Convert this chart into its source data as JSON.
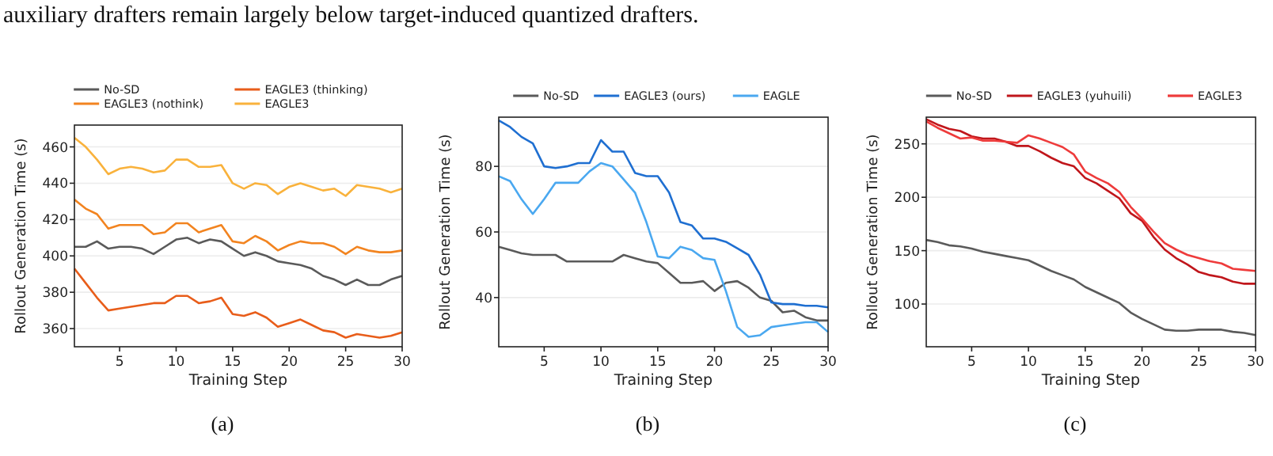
{
  "chart_data": [
    {
      "type": "line",
      "title": "(a)",
      "annotations": [
        "auxiliary drafters remain largely below target-induced quantized drafters."
      ],
      "xlabel": "Training Step",
      "ylabel": "Rollout Generation Time (s)",
      "x": [
        1,
        2,
        3,
        4,
        5,
        6,
        7,
        8,
        9,
        10,
        11,
        12,
        13,
        14,
        15,
        16,
        17,
        18,
        19,
        20,
        21,
        22,
        23,
        24,
        25,
        26,
        27,
        28,
        29,
        30
      ],
      "xlim": [
        1,
        30
      ],
      "xticks": [
        5,
        10,
        15,
        20,
        25,
        30
      ],
      "ylim": [
        350,
        472
      ],
      "yticks": [
        360,
        380,
        400,
        420,
        440,
        460
      ],
      "grid": "y",
      "legend": "top",
      "series": [
        {
          "name": "No-SD",
          "color": "#5a5a5a",
          "values": [
            405,
            405,
            408,
            404,
            405,
            405,
            404,
            401,
            405,
            409,
            410,
            407,
            409,
            408,
            404,
            400,
            402,
            400,
            397,
            396,
            395,
            393,
            389,
            387,
            384,
            387,
            384,
            384,
            387,
            389
          ]
        },
        {
          "name": "EAGLE3 (thinking)",
          "color": "#e85d1a",
          "values": [
            393,
            385,
            377,
            370,
            371,
            372,
            373,
            374,
            374,
            378,
            378,
            374,
            375,
            377,
            368,
            367,
            369,
            366,
            361,
            363,
            365,
            362,
            359,
            358,
            355,
            357,
            356,
            355,
            356,
            358
          ]
        },
        {
          "name": "EAGLE3 (nothink)",
          "color": "#f28420",
          "values": [
            431,
            426,
            423,
            415,
            417,
            417,
            417,
            412,
            413,
            418,
            418,
            413,
            415,
            417,
            408,
            407,
            411,
            408,
            403,
            406,
            408,
            407,
            407,
            405,
            401,
            405,
            403,
            402,
            402,
            403
          ]
        },
        {
          "name": "EAGLE3",
          "color": "#f9b23c",
          "values": [
            465,
            460,
            453,
            445,
            448,
            449,
            448,
            446,
            447,
            453,
            453,
            449,
            449,
            450,
            440,
            437,
            440,
            439,
            434,
            438,
            440,
            438,
            436,
            437,
            433,
            439,
            438,
            437,
            435,
            437
          ]
        }
      ]
    },
    {
      "type": "line",
      "title": "(b)",
      "xlabel": "Training Step",
      "ylabel": "Rollout Generation Time (s)",
      "x": [
        1,
        2,
        3,
        4,
        5,
        6,
        7,
        8,
        9,
        10,
        11,
        12,
        13,
        14,
        15,
        16,
        17,
        18,
        19,
        20,
        21,
        22,
        23,
        24,
        25,
        26,
        27,
        28,
        29,
        30
      ],
      "xlim": [
        1,
        30
      ],
      "xticks": [
        5,
        10,
        15,
        20,
        25,
        30
      ],
      "ylim": [
        25,
        95
      ],
      "yticks": [
        40,
        60,
        80
      ],
      "grid": "y",
      "legend": "top",
      "series": [
        {
          "name": "No-SD",
          "color": "#5a5a5a",
          "values": [
            55.5,
            54.5,
            53.5,
            53,
            53,
            53,
            51,
            51,
            51,
            51,
            51,
            53,
            52,
            51,
            50.5,
            47.5,
            44.5,
            44.5,
            45,
            42,
            44.5,
            45,
            43,
            40,
            39,
            35.5,
            36,
            34,
            33,
            33
          ]
        },
        {
          "name": "EAGLE3 (ours)",
          "color": "#1f6fd1",
          "values": [
            94,
            92,
            89,
            87,
            80,
            79.5,
            80,
            81,
            81,
            88,
            84.5,
            84.5,
            78,
            77,
            77,
            72,
            63,
            62,
            58,
            58,
            57,
            55,
            53,
            47,
            38.5,
            38,
            38,
            37.5,
            37.5,
            37
          ]
        },
        {
          "name": "EAGLE",
          "color": "#4aa8f0",
          "values": [
            77,
            75.5,
            70,
            65.5,
            70,
            75,
            75,
            75,
            78.5,
            81,
            80,
            76,
            72,
            63,
            52.5,
            52,
            55.5,
            54.5,
            52,
            51.5,
            42,
            31,
            28,
            28.5,
            31,
            31.5,
            32,
            32.5,
            32.5,
            29.5
          ]
        }
      ]
    },
    {
      "type": "line",
      "title": "(c)",
      "xlabel": "Training Step",
      "ylabel": "Rollout Generation Time (s)",
      "x": [
        1,
        2,
        3,
        4,
        5,
        6,
        7,
        8,
        9,
        10,
        11,
        12,
        13,
        14,
        15,
        16,
        17,
        18,
        19,
        20,
        21,
        22,
        23,
        24,
        25,
        26,
        27,
        28,
        29,
        30
      ],
      "xlim": [
        1,
        30
      ],
      "xticks": [
        5,
        10,
        15,
        20,
        25,
        30
      ],
      "ylim": [
        60,
        275
      ],
      "yticks": [
        100,
        150,
        200,
        250
      ],
      "grid": "y",
      "legend": "top",
      "series": [
        {
          "name": "No-SD",
          "color": "#5a5a5a",
          "values": [
            160,
            158,
            155,
            154,
            152,
            149,
            147,
            145,
            143,
            141,
            136,
            131,
            127,
            123,
            116,
            111,
            106,
            101,
            92,
            86,
            81,
            76,
            75,
            75,
            76,
            76,
            76,
            74,
            73,
            71
          ]
        },
        {
          "name": "EAGLE3 (yuhuili)",
          "color": "#c0161b",
          "values": [
            273,
            268,
            264,
            262,
            257,
            255,
            255,
            252,
            248,
            248,
            243,
            237,
            232,
            229,
            218,
            213,
            206,
            199,
            185,
            178,
            163,
            151,
            143,
            137,
            130,
            127,
            125,
            121,
            119,
            119
          ]
        },
        {
          "name": "EAGLE3",
          "color": "#ee3b3b",
          "values": [
            271,
            265,
            260,
            255,
            256,
            253,
            253,
            252,
            251,
            258,
            255,
            251,
            247,
            240,
            224,
            218,
            213,
            205,
            191,
            180,
            168,
            157,
            151,
            146,
            143,
            140,
            138,
            133,
            132,
            131
          ]
        }
      ]
    }
  ]
}
